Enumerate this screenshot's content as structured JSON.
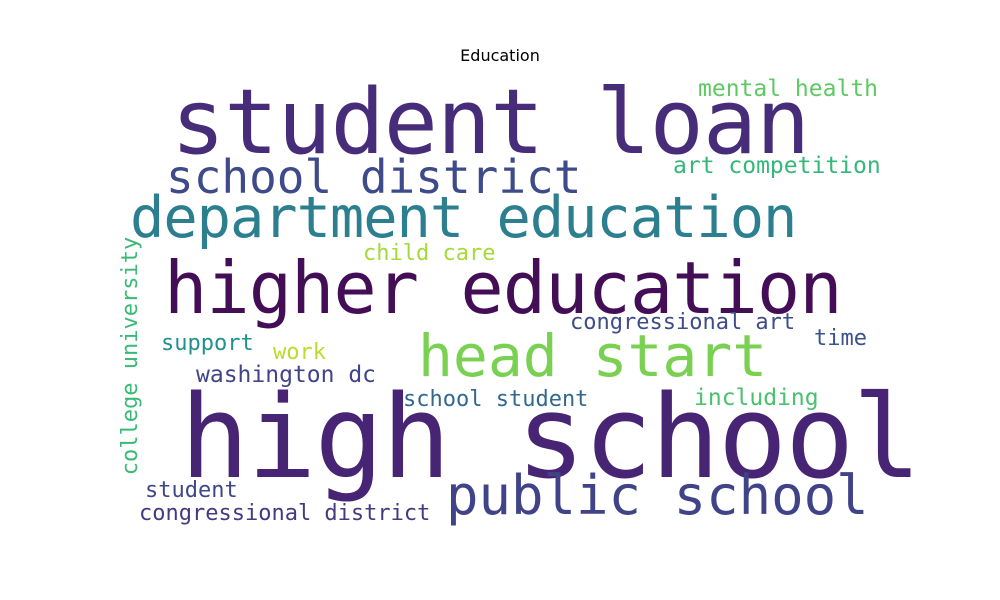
{
  "title": "Education",
  "words": [
    {
      "text": "student loan",
      "color": "#472c7a"
    },
    {
      "text": "mental health",
      "color": "#5ec962"
    },
    {
      "text": "school district",
      "color": "#3e4a89"
    },
    {
      "text": "art competition",
      "color": "#35b779"
    },
    {
      "text": "department education",
      "color": "#2c7f8e"
    },
    {
      "text": "child care",
      "color": "#a5db36"
    },
    {
      "text": "higher education",
      "color": "#440e57"
    },
    {
      "text": "college university",
      "color": "#3aba76"
    },
    {
      "text": "congressional art",
      "color": "#3e4c8a"
    },
    {
      "text": "head start",
      "color": "#7ad151"
    },
    {
      "text": "support",
      "color": "#21918c"
    },
    {
      "text": "time",
      "color": "#3b528b"
    },
    {
      "text": "work",
      "color": "#b8de29"
    },
    {
      "text": "washington dc",
      "color": "#414487"
    },
    {
      "text": "school student",
      "color": "#31688e"
    },
    {
      "text": "including",
      "color": "#4ac16d"
    },
    {
      "text": "high school",
      "color": "#482475"
    },
    {
      "text": "student",
      "color": "#3f4788"
    },
    {
      "text": "public school",
      "color": "#404387"
    },
    {
      "text": "congressional district",
      "color": "#443a83"
    }
  ]
}
